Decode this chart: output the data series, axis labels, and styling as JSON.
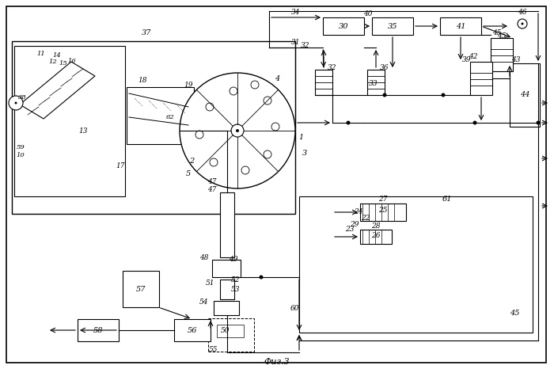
{
  "title": "Фиг.3",
  "bg_color": "#ffffff",
  "line_color": "#000000",
  "fig_width": 7.0,
  "fig_height": 4.66,
  "dpi": 100
}
